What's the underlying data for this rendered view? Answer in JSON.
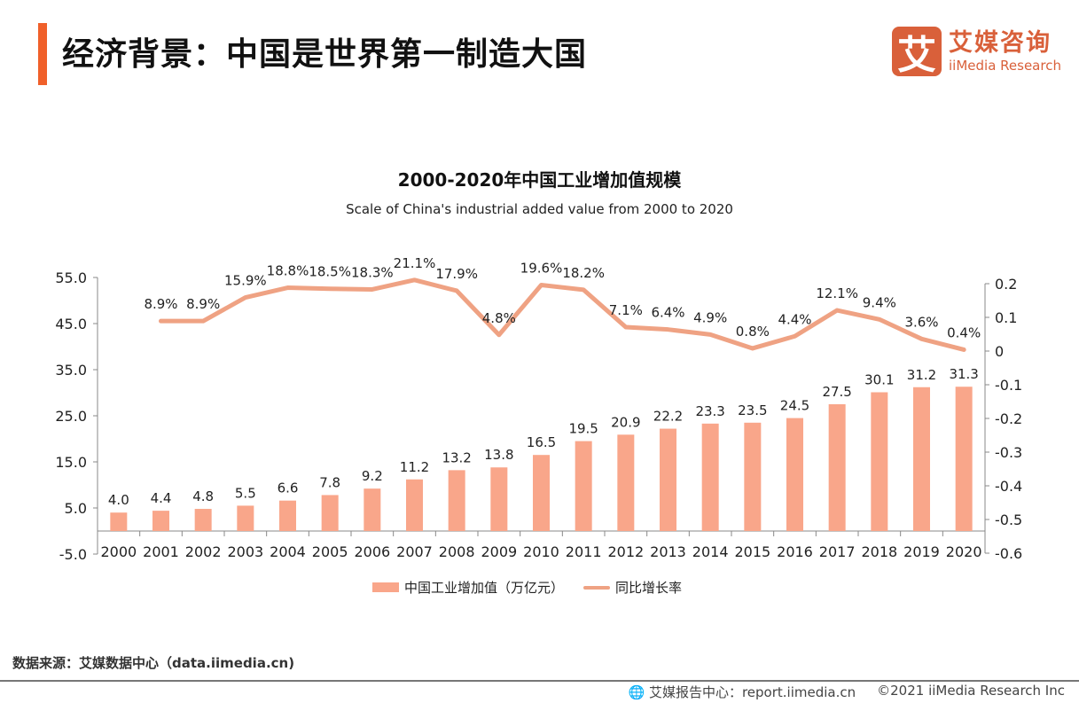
{
  "header": {
    "title": "经济背景：中国是世界第一制造大国",
    "logo_mark": "艾",
    "logo_cn": "艾媒咨询",
    "logo_en": "iiMedia Research"
  },
  "colors": {
    "accent": "#F0602A",
    "bar": "#F9A68A",
    "line": "#EFA283",
    "logo": "#D9603A"
  },
  "chart_data": {
    "type": "bar+line",
    "title": "2000-2020年中国工业增加值规模",
    "subtitle": "Scale of China's industrial added value from 2000 to 2020",
    "categories": [
      "2000",
      "2001",
      "2002",
      "2003",
      "2004",
      "2005",
      "2006",
      "2007",
      "2008",
      "2009",
      "2010",
      "2011",
      "2012",
      "2013",
      "2014",
      "2015",
      "2016",
      "2017",
      "2018",
      "2019",
      "2020"
    ],
    "series": [
      {
        "name": "中国工业增加值（万亿元）",
        "type": "bar",
        "axis": "left",
        "values": [
          4.0,
          4.4,
          4.8,
          5.5,
          6.6,
          7.8,
          9.2,
          11.2,
          13.2,
          13.8,
          16.5,
          19.5,
          20.9,
          22.2,
          23.3,
          23.5,
          24.5,
          27.5,
          30.1,
          31.2,
          31.3
        ],
        "labels": [
          "4.0",
          "4.4",
          "4.8",
          "5.5",
          "6.6",
          "7.8",
          "9.2",
          "11.2",
          "13.2",
          "13.8",
          "16.5",
          "19.5",
          "20.9",
          "22.2",
          "23.3",
          "23.5",
          "24.5",
          "27.5",
          "30.1",
          "31.2",
          "31.3"
        ]
      },
      {
        "name": "同比增长率",
        "type": "line",
        "axis": "right",
        "values": [
          null,
          0.089,
          0.089,
          0.159,
          0.188,
          0.185,
          0.183,
          0.211,
          0.179,
          0.048,
          0.196,
          0.182,
          0.071,
          0.064,
          0.049,
          0.008,
          0.044,
          0.121,
          0.094,
          0.036,
          0.004
        ],
        "labels": [
          "",
          "8.9%",
          "8.9%",
          "15.9%",
          "18.8%",
          "18.5%",
          "18.3%",
          "21.1%",
          "17.9%",
          "4.8%",
          "19.6%",
          "18.2%",
          "7.1%",
          "6.4%",
          "4.9%",
          "0.8%",
          "4.4%",
          "12.1%",
          "9.4%",
          "3.6%",
          "0.4%"
        ]
      }
    ],
    "left_axis": {
      "ylim": [
        -5,
        55
      ],
      "ticks": [
        "55.0",
        "45.0",
        "35.0",
        "25.0",
        "15.0",
        "5.0",
        "-5.0"
      ]
    },
    "right_axis": {
      "ylim": [
        -0.6,
        0.2
      ],
      "ticks": [
        "0.2",
        "0.1",
        "0",
        "-0.1",
        "-0.2",
        "-0.3",
        "-0.4",
        "-0.5",
        "-0.6"
      ]
    },
    "grid": false,
    "legend_position": "bottom"
  },
  "footer": {
    "source": "数据来源：艾媒数据中心（data.iimedia.cn)",
    "report": "艾媒报告中心：report.iimedia.cn",
    "copyright": "©2021  iiMedia Research  Inc"
  }
}
